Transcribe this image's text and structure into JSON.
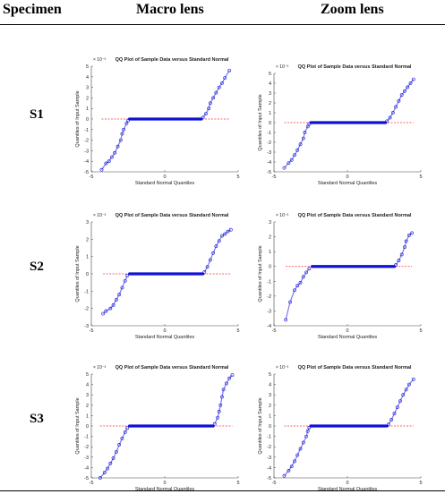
{
  "header": {
    "specimen": "Specimen",
    "macro": "Macro lens",
    "zoom": "Zoom lens"
  },
  "colors": {
    "points": "#1010d8",
    "reference_line": "#ff3030",
    "axes": "#444444"
  },
  "rows": [
    {
      "label": "S1",
      "plots": [
        {
          "lens": "Macro lens",
          "chart_data": {
            "type": "scatter",
            "title": "QQ Plot of Sample Data versus Standard Normal",
            "xlabel": "Standard Normal Quantiles",
            "ylabel": "Quantiles of Input Sample",
            "exponent_label": "× 10⁻³",
            "xlim": [
              -5,
              5
            ],
            "ylim": [
              -5,
              5
            ],
            "xticks": [
              -5,
              0,
              5
            ],
            "yticks": [
              -5,
              -4,
              -3,
              -2,
              -1,
              0,
              1,
              2,
              3,
              4,
              5
            ],
            "plateau": 0.0,
            "flat_range": [
              -2.4,
              2.5
            ],
            "points": [
              [
                -4.3,
                -4.8
              ],
              [
                -4.0,
                -4.2
              ],
              [
                -3.8,
                -4.0
              ],
              [
                -3.6,
                -3.6
              ],
              [
                -3.4,
                -3.2
              ],
              [
                -3.2,
                -2.6
              ],
              [
                -3.0,
                -2.0
              ],
              [
                -2.9,
                -1.4
              ],
              [
                -2.8,
                -1.0
              ],
              [
                -2.6,
                -0.4
              ],
              [
                -2.5,
                -0.15
              ],
              [
                2.6,
                0.15
              ],
              [
                2.8,
                0.5
              ],
              [
                3.0,
                1.0
              ],
              [
                3.1,
                1.5
              ],
              [
                3.3,
                2.0
              ],
              [
                3.5,
                2.5
              ],
              [
                3.7,
                3.0
              ],
              [
                3.9,
                3.4
              ],
              [
                4.1,
                3.9
              ],
              [
                4.4,
                4.6
              ]
            ],
            "reference_line": [
              [
                -4.3,
                0.0
              ],
              [
                4.4,
                0.0
              ]
            ]
          }
        },
        {
          "lens": "Zoom lens",
          "chart_data": {
            "type": "scatter",
            "title": "QQ Plot of Sample Data versus Standard Normal",
            "xlabel": "Standard Normal Quantiles",
            "ylabel": "Quantiles of Input Sample",
            "exponent_label": "× 10⁻³",
            "xlim": [
              -5,
              5
            ],
            "ylim": [
              -5,
              5
            ],
            "xticks": [
              -5,
              0,
              5
            ],
            "yticks": [
              -5,
              -4,
              -3,
              -2,
              -1,
              0,
              1,
              2,
              3,
              4,
              5
            ],
            "plateau": 0.0,
            "flat_range": [
              -2.5,
              2.6
            ],
            "points": [
              [
                -4.3,
                -4.6
              ],
              [
                -4.0,
                -4.1
              ],
              [
                -3.8,
                -3.8
              ],
              [
                -3.6,
                -3.3
              ],
              [
                -3.4,
                -2.8
              ],
              [
                -3.2,
                -2.2
              ],
              [
                -3.0,
                -1.6
              ],
              [
                -2.9,
                -1.0
              ],
              [
                -2.7,
                -0.4
              ],
              [
                -2.6,
                -0.15
              ],
              [
                2.7,
                0.15
              ],
              [
                2.9,
                0.5
              ],
              [
                3.1,
                1.0
              ],
              [
                3.3,
                1.6
              ],
              [
                3.5,
                2.2
              ],
              [
                3.7,
                2.8
              ],
              [
                3.9,
                3.2
              ],
              [
                4.1,
                3.6
              ],
              [
                4.3,
                4.0
              ],
              [
                4.5,
                4.4
              ]
            ],
            "reference_line": [
              [
                -4.3,
                0.0
              ],
              [
                4.5,
                0.0
              ]
            ]
          }
        }
      ]
    },
    {
      "label": "S2",
      "plots": [
        {
          "lens": "Macro lens",
          "chart_data": {
            "type": "scatter",
            "title": "QQ Plot of Sample Data versus Standard Normal",
            "xlabel": "Standard Normal Quantiles",
            "ylabel": "Quantiles of Input Sample",
            "exponent_label": "× 10⁻³",
            "xlim": [
              -5,
              5
            ],
            "ylim": [
              -3,
              3
            ],
            "xticks": [
              -5,
              0,
              5
            ],
            "yticks": [
              -3,
              -2,
              -1,
              0,
              1,
              2,
              3
            ],
            "plateau": 0.0,
            "flat_range": [
              -2.4,
              2.6
            ],
            "points": [
              [
                -4.2,
                -2.3
              ],
              [
                -4.0,
                -2.15
              ],
              [
                -3.7,
                -2.0
              ],
              [
                -3.5,
                -1.8
              ],
              [
                -3.3,
                -1.5
              ],
              [
                -3.1,
                -1.2
              ],
              [
                -2.9,
                -0.8
              ],
              [
                -2.7,
                -0.4
              ],
              [
                -2.55,
                -0.1
              ],
              [
                2.7,
                0.1
              ],
              [
                2.9,
                0.4
              ],
              [
                3.1,
                0.8
              ],
              [
                3.3,
                1.2
              ],
              [
                3.5,
                1.6
              ],
              [
                3.7,
                1.9
              ],
              [
                3.9,
                2.2
              ],
              [
                4.1,
                2.3
              ],
              [
                4.3,
                2.45
              ],
              [
                4.5,
                2.55
              ]
            ],
            "reference_line": [
              [
                -4.2,
                0.0
              ],
              [
                4.5,
                0.0
              ]
            ]
          }
        },
        {
          "lens": "Zoom lens",
          "chart_data": {
            "type": "scatter",
            "title": "QQ Plot of Sample Data versus Standard Normal",
            "xlabel": "Standard Normal Quantiles",
            "ylabel": "Quantiles of Input Sample",
            "exponent_label": "× 10⁻³",
            "xlim": [
              -5,
              5
            ],
            "ylim": [
              -4,
              3
            ],
            "xticks": [
              -5,
              0,
              5
            ],
            "yticks": [
              -4,
              -3,
              -2,
              -1,
              0,
              1,
              2,
              3
            ],
            "plateau": 0.0,
            "flat_range": [
              -2.4,
              3.2
            ],
            "points": [
              [
                -4.2,
                -3.6
              ],
              [
                -3.9,
                -2.4
              ],
              [
                -3.6,
                -1.6
              ],
              [
                -3.4,
                -1.3
              ],
              [
                -3.2,
                -1.1
              ],
              [
                -3.0,
                -0.7
              ],
              [
                -2.8,
                -0.4
              ],
              [
                -2.6,
                -0.15
              ],
              [
                3.3,
                0.1
              ],
              [
                3.5,
                0.4
              ],
              [
                3.7,
                0.8
              ],
              [
                3.9,
                1.3
              ],
              [
                4.0,
                1.7
              ],
              [
                4.2,
                2.1
              ],
              [
                4.4,
                2.25
              ]
            ],
            "reference_line": [
              [
                -4.2,
                0.0
              ],
              [
                4.4,
                0.0
              ]
            ]
          }
        }
      ]
    },
    {
      "label": "S3",
      "plots": [
        {
          "lens": "Macro lens",
          "chart_data": {
            "type": "scatter",
            "title": "QQ Plot of Sample Data versus Standard Normal",
            "xlabel": "Standard Normal Quantiles",
            "ylabel": "Quantiles of Input Sample",
            "exponent_label": "× 10⁻³",
            "xlim": [
              -5,
              5
            ],
            "ylim": [
              -5,
              5
            ],
            "xticks": [
              -5,
              0,
              5
            ],
            "yticks": [
              -5,
              -4,
              -3,
              -2,
              -1,
              0,
              1,
              2,
              3,
              4,
              5
            ],
            "plateau": 0.0,
            "flat_range": [
              -2.4,
              3.3
            ],
            "points": [
              [
                -4.4,
                -5.0
              ],
              [
                -4.1,
                -4.5
              ],
              [
                -3.9,
                -4.1
              ],
              [
                -3.7,
                -3.6
              ],
              [
                -3.5,
                -3.1
              ],
              [
                -3.3,
                -2.5
              ],
              [
                -3.1,
                -1.8
              ],
              [
                -2.9,
                -1.2
              ],
              [
                -2.7,
                -0.6
              ],
              [
                -2.55,
                -0.2
              ],
              [
                3.4,
                0.2
              ],
              [
                3.6,
                0.8
              ],
              [
                3.7,
                1.4
              ],
              [
                3.8,
                2.0
              ],
              [
                3.9,
                2.8
              ],
              [
                4.0,
                3.5
              ],
              [
                4.2,
                4.1
              ],
              [
                4.4,
                4.6
              ],
              [
                4.6,
                4.9
              ]
            ],
            "reference_line": [
              [
                -4.4,
                0.0
              ],
              [
                4.6,
                0.0
              ]
            ]
          }
        },
        {
          "lens": "Zoom lens",
          "chart_data": {
            "type": "scatter",
            "title": "QQ Plot of Sample Data versus Standard Normal",
            "xlabel": "Standard Normal Quantiles",
            "ylabel": "Quantiles of Input Sample",
            "exponent_label": "× 10⁻³",
            "xlim": [
              -5,
              5
            ],
            "ylim": [
              -5,
              5
            ],
            "xticks": [
              -5,
              0,
              5
            ],
            "yticks": [
              -5,
              -4,
              -3,
              -2,
              -1,
              0,
              1,
              2,
              3,
              4,
              5
            ],
            "plateau": 0.0,
            "flat_range": [
              -2.5,
              2.7
            ],
            "points": [
              [
                -4.3,
                -4.8
              ],
              [
                -4.0,
                -4.3
              ],
              [
                -3.8,
                -3.9
              ],
              [
                -3.6,
                -3.4
              ],
              [
                -3.4,
                -2.8
              ],
              [
                -3.2,
                -2.2
              ],
              [
                -3.0,
                -1.6
              ],
              [
                -2.8,
                -1.0
              ],
              [
                -2.7,
                -0.5
              ],
              [
                -2.6,
                -0.15
              ],
              [
                2.8,
                0.15
              ],
              [
                3.0,
                0.6
              ],
              [
                3.2,
                1.2
              ],
              [
                3.4,
                1.8
              ],
              [
                3.6,
                2.4
              ],
              [
                3.8,
                3.0
              ],
              [
                4.0,
                3.5
              ],
              [
                4.2,
                4.0
              ],
              [
                4.5,
                4.5
              ]
            ],
            "reference_line": [
              [
                -4.3,
                0.0
              ],
              [
                4.5,
                0.0
              ]
            ]
          }
        }
      ]
    }
  ]
}
